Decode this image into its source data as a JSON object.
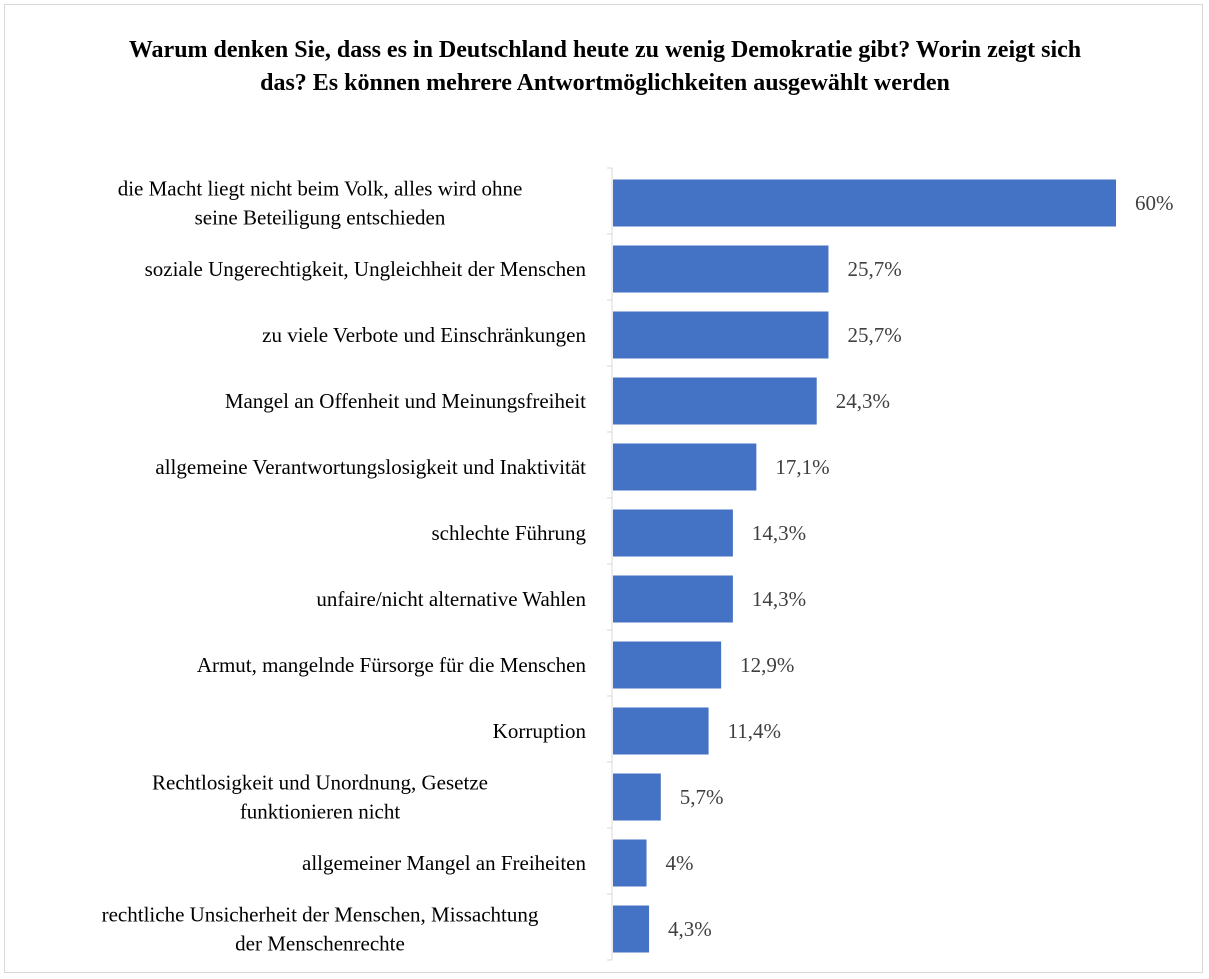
{
  "chart_data": {
    "type": "bar",
    "orientation": "horizontal",
    "title": "Warum denken Sie, dass es in Deutschland heute zu wenig Demokratie gibt? Worin zeigt sich das? Es können mehrere Antwortmöglichkeiten ausgewählt werden",
    "xlabel": "",
    "ylabel": "",
    "categories": [
      "die Macht liegt nicht beim Volk, alles wird ohne seine Beteiligung entschieden",
      "soziale Ungerechtigkeit, Ungleichheit der Menschen",
      "zu viele Verbote und Einschränkungen",
      "Mangel an Offenheit und Meinungsfreiheit",
      "allgemeine Verantwortungslosigkeit und Inaktivität",
      "schlechte Führung",
      "unfaire/nicht alternative Wahlen",
      "Armut, mangelnde Fürsorge für die Menschen",
      "Korruption",
      "Rechtlosigkeit und Unordnung, Gesetze funktionieren nicht",
      "allgemeiner Mangel an Freiheiten",
      "rechtliche Unsicherheit der Menschen, Missachtung der Menschenrechte"
    ],
    "category_lines": [
      [
        "die Macht liegt nicht beim Volk, alles wird ohne",
        "seine Beteiligung entschieden"
      ],
      [
        "soziale Ungerechtigkeit, Ungleichheit der Menschen"
      ],
      [
        "zu viele Verbote und Einschränkungen"
      ],
      [
        "Mangel an Offenheit und Meinungsfreiheit"
      ],
      [
        "allgemeine Verantwortungslosigkeit und Inaktivität"
      ],
      [
        "schlechte Führung"
      ],
      [
        "unfaire/nicht alternative Wahlen"
      ],
      [
        "Armut, mangelnde Fürsorge für die Menschen"
      ],
      [
        "Korruption"
      ],
      [
        "Rechtlosigkeit und Unordnung, Gesetze",
        "funktionieren nicht"
      ],
      [
        "allgemeiner Mangel an Freiheiten"
      ],
      [
        "rechtliche Unsicherheit der Menschen, Missachtung",
        "der Menschenrechte"
      ]
    ],
    "values": [
      60,
      25.7,
      25.7,
      24.3,
      17.1,
      14.3,
      14.3,
      12.9,
      11.4,
      5.7,
      4,
      4.3
    ],
    "value_labels": [
      "60%",
      "25,7%",
      "25,7%",
      "24,3%",
      "17,1%",
      "14,3%",
      "14,3%",
      "12,9%",
      "11,4%",
      "5,7%",
      "4%",
      "4,3%"
    ],
    "xlim": [
      0,
      60
    ],
    "grid": false,
    "legend": "none",
    "colors": {
      "bar": "#4472c4",
      "axis": "#d9d9d9",
      "value_label": "#404040"
    }
  }
}
